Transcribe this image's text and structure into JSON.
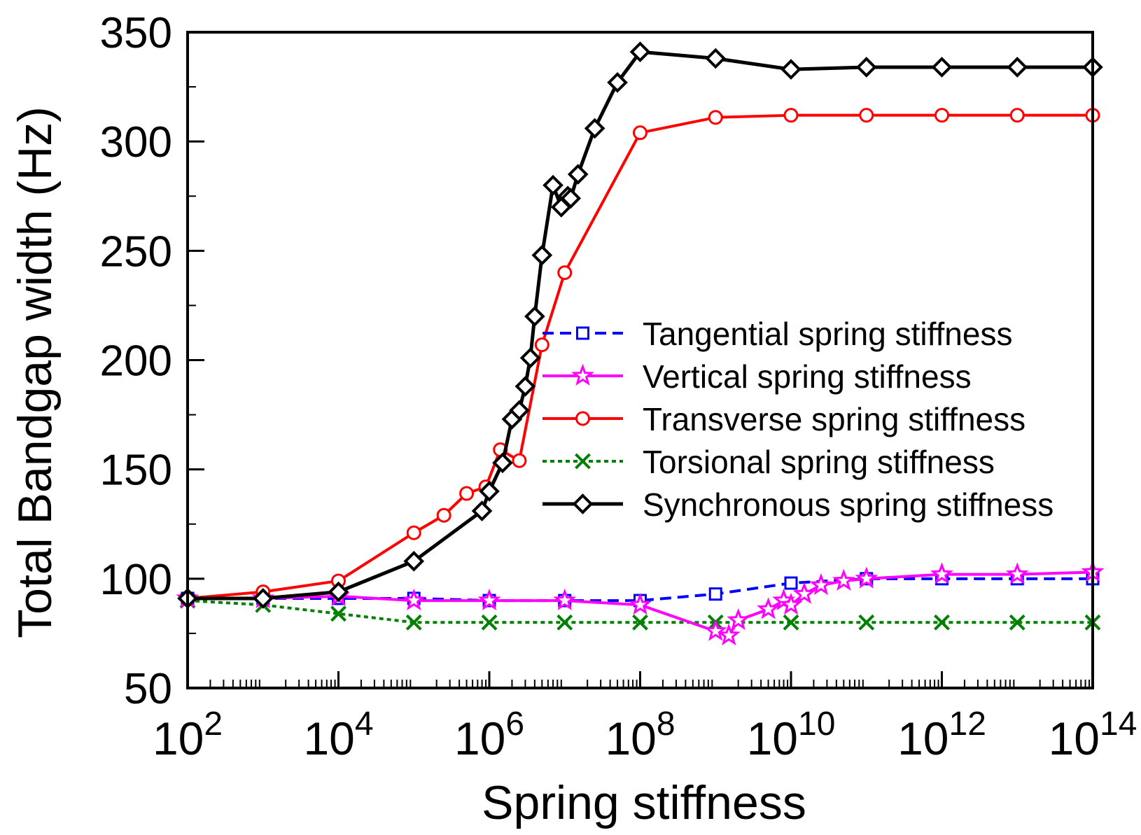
{
  "chart_data": {
    "type": "line",
    "x_scale": "log10",
    "xlabel": "Spring stiffness",
    "ylabel": "Total Bandgap width (Hz)",
    "xlim_exp": [
      2,
      14
    ],
    "ylim": [
      50,
      350
    ],
    "x_ticks": [
      {
        "base": "10",
        "exp": "2",
        "value_exp": 2
      },
      {
        "base": "10",
        "exp": "4",
        "value_exp": 4
      },
      {
        "base": "10",
        "exp": "6",
        "value_exp": 6
      },
      {
        "base": "10",
        "exp": "8",
        "value_exp": 8
      },
      {
        "base": "10",
        "exp": "10",
        "value_exp": 10
      },
      {
        "base": "10",
        "exp": "12",
        "value_exp": 12
      },
      {
        "base": "10",
        "exp": "14",
        "value_exp": 14
      }
    ],
    "y_ticks": [
      50,
      100,
      150,
      200,
      250,
      300,
      350
    ],
    "legend_position": "center-right",
    "series": [
      {
        "name": "Tangential spring stiffness",
        "color": "#0000ff",
        "dash": "dashed",
        "marker": "square",
        "x_exp": [
          2,
          3,
          4,
          5,
          6,
          7,
          8,
          9,
          10,
          11,
          12,
          13,
          14
        ],
        "y": [
          91,
          91,
          91,
          91,
          90,
          90,
          90,
          93,
          98,
          100,
          100,
          100,
          100
        ]
      },
      {
        "name": "Vertical spring stiffness",
        "color": "#ff00ff",
        "dash": "solid",
        "marker": "star",
        "x_exp": [
          2,
          3,
          4,
          5,
          6,
          7,
          8,
          9,
          9.176,
          9.301,
          9.699,
          9.903,
          10,
          10.176,
          10.398,
          10.699,
          11,
          12,
          13,
          14
        ],
        "y": [
          91,
          91,
          92,
          90,
          90,
          90,
          88,
          76,
          74,
          81,
          86,
          90,
          88,
          93,
          97,
          99,
          100,
          102,
          102,
          103
        ]
      },
      {
        "name": "Transverse spring stiffness",
        "color": "#ff0000",
        "dash": "solid",
        "marker": "circle",
        "x_exp": [
          2,
          3,
          4,
          5,
          5.398,
          5.699,
          5.954,
          6.146,
          6.398,
          6.699,
          7,
          8,
          9,
          10,
          11,
          12,
          13,
          14
        ],
        "y": [
          91,
          94,
          99,
          121,
          129,
          139,
          142,
          159,
          154,
          207,
          240,
          304,
          311,
          312,
          312,
          312,
          312,
          312
        ]
      },
      {
        "name": "Torsional spring stiffness",
        "color": "#008000",
        "dash": "dotted",
        "marker": "x",
        "x_exp": [
          2,
          3,
          4,
          5,
          6,
          7,
          8,
          9,
          10,
          11,
          12,
          13,
          14
        ],
        "y": [
          90,
          88,
          84,
          80,
          80,
          80,
          80,
          80,
          80,
          80,
          80,
          80,
          80
        ]
      },
      {
        "name": "Synchronous spring stiffness",
        "color": "#000000",
        "dash": "solid",
        "marker": "diamond",
        "x_exp": [
          2,
          3,
          4,
          5,
          5.903,
          6,
          6.176,
          6.301,
          6.398,
          6.477,
          6.544,
          6.602,
          6.699,
          6.845,
          6.954,
          7.041,
          7.079,
          7.176,
          7.398,
          7.699,
          8,
          9,
          10,
          11,
          12,
          13,
          14
        ],
        "y": [
          91,
          91,
          94,
          108,
          131,
          140,
          153,
          173,
          177,
          188,
          201,
          220,
          248,
          280,
          270,
          275,
          274,
          285,
          306,
          327,
          341,
          338,
          333,
          334,
          334,
          334,
          334
        ]
      }
    ]
  }
}
